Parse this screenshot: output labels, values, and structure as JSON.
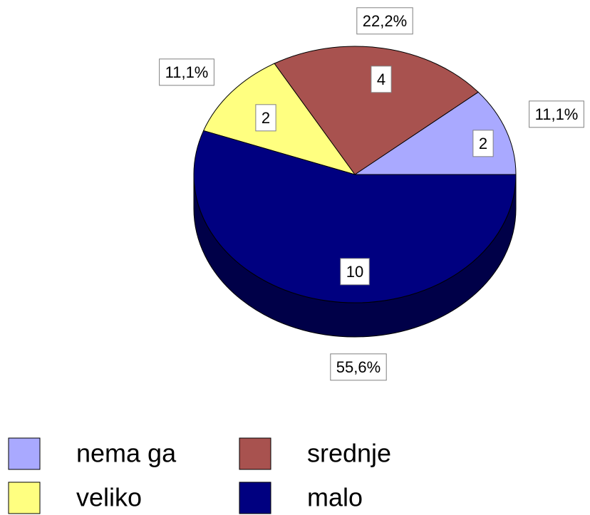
{
  "chart_data": {
    "type": "pie3d",
    "categories": [
      "nema ga",
      "srednje",
      "veliko",
      "malo"
    ],
    "values": [
      2,
      4,
      2,
      10
    ],
    "percent_labels": [
      "11,1%",
      "22,2%",
      "11,1%",
      "55,6%"
    ],
    "colors": [
      "#a9a9ff",
      "#a8524f",
      "#ffff80",
      "#000080"
    ],
    "side_colors": [
      "#6e6eb0",
      "#6e3533",
      "#a6a653",
      "#000048"
    ],
    "legend": "bottom"
  }
}
